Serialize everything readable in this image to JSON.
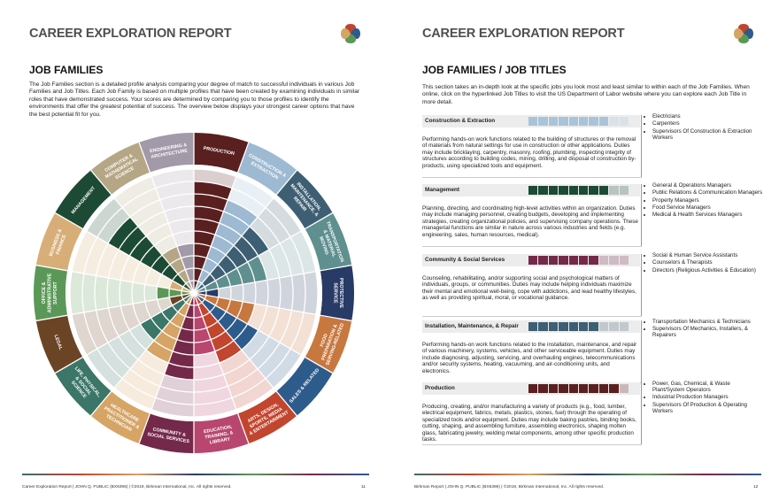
{
  "left_page": {
    "header": {
      "title": "CAREER EXPLORATION REPORT"
    },
    "section_title": "JOB FAMILIES",
    "intro": "The Job Families section is a detailed profile analysis comparing your degree of match to successful individuals in various Job Families and Job Titles. Each Job Family is based on multiple profiles that have been created by examining individuals in similar roles that have demonstrated success. Your scores are determined by comparing you to those profiles to identify the environments that offer the greatest potential of success. The overview below displays your strongest career options that have the best potential fit for you.",
    "chart_data": {
      "type": "radial",
      "rlim": [
        0,
        10
      ],
      "families": [
        {
          "lines": [
            "PRODUCTION"
          ],
          "color": "#5a1f1f",
          "value": 9
        },
        {
          "lines": [
            "CONSTRUCTION &",
            "EXTRACTION"
          ],
          "color": "#9dbad2",
          "value": 8
        },
        {
          "lines": [
            "INSTALLATION,",
            "MAINTENANCE, &",
            "REPAIR"
          ],
          "color": "#3e5f73",
          "value": 7
        },
        {
          "lines": [
            "TRANSPORTATION",
            "& MATERIAL",
            "MOVING"
          ],
          "color": "#5f8f8f",
          "value": 6
        },
        {
          "lines": [
            "PROTECTIVE",
            "SERVICE"
          ],
          "color": "#283a66",
          "value": 2
        },
        {
          "lines": [
            "FOOD",
            "PREPARATION &",
            "SERVING-RELATED"
          ],
          "color": "#c7783f",
          "value": 5
        },
        {
          "lines": [
            "SALES & RELATED"
          ],
          "color": "#2d5b8c",
          "value": 6
        },
        {
          "lines": [
            "ARTS, DESIGN,",
            "SPORTS, MEDIA",
            "& ENTERTAINMENT"
          ],
          "color": "#c2452e",
          "value": 6
        },
        {
          "lines": [
            "EDUCATION,",
            "TRAINING, &",
            "LIBRARY"
          ],
          "color": "#b8466f",
          "value": 5
        },
        {
          "lines": [
            "COMMUNITY &",
            "SOCIAL SERVICES"
          ],
          "color": "#74294a",
          "value": 7
        },
        {
          "lines": [
            "HEALTHCARE",
            "PRACTITIONER &",
            "TECHNICIAN"
          ],
          "color": "#d6a464",
          "value": 6
        },
        {
          "lines": [
            "LIFE, PHYSICAL,",
            "& SOCIAL",
            "SCIENCE"
          ],
          "color": "#3b7668",
          "value": 5
        },
        {
          "lines": [
            "LEGAL"
          ],
          "color": "#6b4426",
          "value": 2
        },
        {
          "lines": [
            "OFFICE &",
            "ADMINISTRATIVE",
            "SUPPORT"
          ],
          "color": "#5b9858",
          "value": 3
        },
        {
          "lines": [
            "BUSINESS &",
            "FINANCE"
          ],
          "color": "#d8ae78",
          "value": 2
        },
        {
          "lines": [
            "MANAGEMENT"
          ],
          "color": "#1d4a34",
          "value": 8
        },
        {
          "lines": [
            "COMPUTER &",
            "MATHEMATICAL",
            "SCIENCE"
          ],
          "color": "#b5a785",
          "value": 4
        },
        {
          "lines": [
            "ENGINEERING &",
            "ARCHITECTURE"
          ],
          "color": "#a299a9",
          "value": 4
        }
      ]
    },
    "footer": {
      "text": "Career Exploration Report | JOHN Q. PUBLIC (BX6396) | ©2019, Birkman International, Inc. All rights reserved.",
      "page": "11"
    }
  },
  "right_page": {
    "header": {
      "title": "CAREER EXPLORATION REPORT"
    },
    "section_title": "JOB FAMILIES / JOB TITLES",
    "intro": "This section takes an in-depth look at the specific jobs you look most and least similar to within each of the Job Families. When online, click on the hyperlinked Job Titles to visit the US Department of Labor website where you can explore each Job Title in more detail.",
    "table": {
      "rows": [
        {
          "title": "Construction & Extraction",
          "color": "#a9c4d8",
          "score": 8,
          "description": "Performing hands-on work functions related to the building of structures or the removal of materials from natural settings for use in construction or other applications. Duties may include bricklaying, carpentry, masonry, roofing, plumbing, inspecting integrity of structures according to building codes, mining, drilling, and disposal of construction by-products, using specialized tools and equipment.",
          "titles": [
            "Electricians",
            "Carpenters",
            "Supervisors Of Construction & Extraction Workers"
          ]
        },
        {
          "title": "Management",
          "color": "#1d4a34",
          "score": 8,
          "description": "Planning, directing, and coordinating high-level activities within an organization. Duties may include managing personnel, creating budgets, developing and implementing strategies, creating organizational policies, and supervising company operations. These managerial functions are similar in nature across various industries and fields (e.g. engineering, sales, human resources, medical).",
          "titles": [
            "General & Operations Managers",
            "Public Relations & Communication Managers",
            "Property Managers",
            "Food Service Managers",
            "Medical & Health Services Managers"
          ]
        },
        {
          "title": "Community & Social Services",
          "color": "#74294a",
          "score": 7,
          "description": "Counseling, rehabilitating, and/or supporting social and psychological matters of individuals, groups, or communities. Duties may include helping individuals maximize their mental and emotional well-being, cope with addictions, and lead healthy lifestyles, as well as providing spiritual, moral, or vocational guidance.",
          "titles": [
            "Social & Human Service Assistants",
            "Counselors & Therapists",
            "Directors (Religious Activities & Education)"
          ]
        },
        {
          "title": "Installation, Maintenance, & Repair",
          "color": "#3e5f73",
          "score": 7,
          "description": "Performing hands-on work functions related to the installation, maintenance, and repair of various machinery, systems, vehicles, and other serviceable equipment. Duties may include diagnosing, adjusting, servicing, and overhauling engines, telecommunications and/or security systems, heating, vacuuming, and air-conditioning units, and electronics.",
          "titles": [
            "Transportation Mechanics & Technicians",
            "Supervisors Of Mechanics, Installers, & Repairers"
          ]
        },
        {
          "title": "Production",
          "color": "#5a1f1f",
          "score": 9,
          "description": "Producing, creating, and/or manufacturing a variety of products (e.g., food, lumber, electrical equipment, fabrics, metals, plastics, stones, fuel) through the operating of specialized tools and/or equipment. Duties may include baking pastries, binding books, cutting, shaping, and assembling furniture, assembling electronics, shaping molten glass, fabricating jewelry, welding metal components, among other specific production tasks.",
          "titles": [
            "Power, Gas, Chemical, & Waste Plant/System Operators",
            "Industrial Production Managers",
            "Supervisors Of Production & Operating Workers"
          ]
        }
      ]
    },
    "footer": {
      "text": "Birkman Report | JOHN Q. PUBLIC (BX6396) | ©2019, Birkman International, Inc. All rights reserved.",
      "page": "12"
    }
  }
}
